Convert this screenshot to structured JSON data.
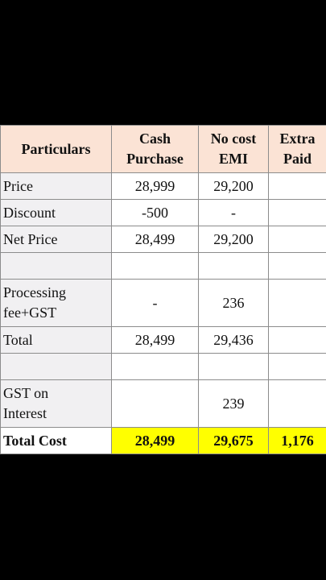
{
  "table": {
    "headers": {
      "particulars": "Particulars",
      "cash_line1": "Cash",
      "cash_line2": "Purchase",
      "emi_line1": "No cost",
      "emi_line2": "EMI",
      "extra_line1": "Extra",
      "extra_line2": "Paid"
    },
    "rows": [
      {
        "label": "Price",
        "cash": "28,999",
        "emi": "29,200",
        "extra": ""
      },
      {
        "label": "Discount",
        "cash": "-500",
        "emi": "-",
        "extra": ""
      },
      {
        "label": "Net Price",
        "cash": "28,499",
        "emi": "29,200",
        "extra": ""
      },
      {
        "label": "",
        "cash": "",
        "emi": "",
        "extra": ""
      },
      {
        "label_line1": "Processing",
        "label_line2": "fee+GST",
        "cash": "-",
        "emi": "236",
        "extra": ""
      },
      {
        "label": "Total",
        "cash": "28,499",
        "emi": "29,436",
        "extra": ""
      },
      {
        "label": "",
        "cash": "",
        "emi": "",
        "extra": ""
      },
      {
        "label_line1": "GST on",
        "label_line2": "Interest",
        "cash": "",
        "emi": "239",
        "extra": ""
      }
    ],
    "total": {
      "label": "Total Cost",
      "cash": "28,499",
      "emi": "29,675",
      "extra": "1,176"
    }
  },
  "colors": {
    "header_bg": "#fbe3d5",
    "label_bg": "#f1f0f2",
    "total_bg": "#ffff00",
    "page_bg": "#000000"
  }
}
